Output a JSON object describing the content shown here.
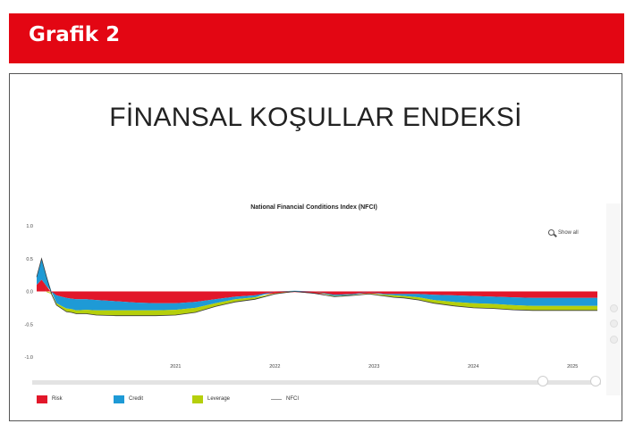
{
  "header": {
    "title": "Grafik 2"
  },
  "figure": {
    "title": "FİNANSAL KOŞULLAR ENDEKSİ"
  },
  "controls": {
    "show_all": "Show all",
    "zoom_icon": "magnifier-icon"
  },
  "colors": {
    "header": "#e30613",
    "risk": "#e2172a",
    "credit": "#1e9ad6",
    "leverage": "#b5cf0b",
    "nfci": "#9a9a9a"
  },
  "chart_data": {
    "type": "area",
    "title": "National Financial Conditions Index (NFCI)",
    "yticks": [
      "1.0",
      "0.5",
      "0.0",
      "-0.5",
      "-1.0"
    ],
    "ylim": [
      -1.0,
      1.0
    ],
    "xlim": [
      2019.6,
      2025.25
    ],
    "xticks": [
      {
        "label": "2021",
        "value": 2021
      },
      {
        "label": "2022",
        "value": 2022
      },
      {
        "label": "2023",
        "value": 2023
      },
      {
        "label": "2024",
        "value": 2024
      },
      {
        "label": "2025",
        "value": 2025
      }
    ],
    "grid": false,
    "legend": "bottom-left",
    "x": [
      2019.6,
      2019.65,
      2019.7,
      2019.75,
      2019.8,
      2019.85,
      2019.9,
      2019.95,
      2020.0,
      2020.1,
      2020.2,
      2020.4,
      2020.6,
      2020.8,
      2021.0,
      2021.2,
      2021.4,
      2021.6,
      2021.8,
      2022.0,
      2022.2,
      2022.4,
      2022.6,
      2022.8,
      2022.95,
      2023.1,
      2023.2,
      2023.3,
      2023.45,
      2023.6,
      2023.8,
      2024.0,
      2024.2,
      2024.4,
      2024.6,
      2024.8,
      2025.0,
      2025.1,
      2025.25
    ],
    "series": [
      {
        "name": "Risk",
        "values": [
          0.1,
          0.18,
          0.08,
          -0.02,
          -0.06,
          -0.08,
          -0.1,
          -0.11,
          -0.12,
          -0.12,
          -0.13,
          -0.15,
          -0.17,
          -0.18,
          -0.18,
          -0.16,
          -0.12,
          -0.08,
          -0.06,
          -0.03,
          -0.01,
          -0.03,
          -0.05,
          -0.04,
          -0.03,
          -0.04,
          -0.04,
          -0.04,
          -0.04,
          -0.05,
          -0.06,
          -0.07,
          -0.08,
          -0.09,
          -0.1,
          -0.1,
          -0.1,
          -0.1,
          -0.1
        ]
      },
      {
        "name": "Credit",
        "values": [
          0.12,
          0.32,
          0.15,
          0.0,
          -0.12,
          -0.14,
          -0.16,
          -0.16,
          -0.17,
          -0.16,
          -0.16,
          -0.14,
          -0.12,
          -0.11,
          -0.1,
          -0.09,
          -0.06,
          -0.04,
          -0.03,
          0.0,
          0.01,
          0.0,
          -0.02,
          -0.01,
          0.0,
          -0.01,
          -0.02,
          -0.03,
          -0.05,
          -0.08,
          -0.1,
          -0.11,
          -0.11,
          -0.12,
          -0.12,
          -0.12,
          -0.12,
          -0.12,
          -0.12
        ]
      },
      {
        "name": "Leverage",
        "values": [
          0.0,
          0.0,
          -0.01,
          -0.02,
          -0.03,
          -0.04,
          -0.05,
          -0.05,
          -0.05,
          -0.06,
          -0.07,
          -0.08,
          -0.08,
          -0.08,
          -0.08,
          -0.07,
          -0.05,
          -0.04,
          -0.03,
          -0.01,
          0.0,
          0.0,
          -0.01,
          -0.01,
          -0.01,
          -0.02,
          -0.03,
          -0.03,
          -0.04,
          -0.05,
          -0.06,
          -0.07,
          -0.07,
          -0.07,
          -0.07,
          -0.07,
          -0.07,
          -0.07,
          -0.07
        ]
      },
      {
        "name": "NFCI",
        "values": [
          0.22,
          0.5,
          0.22,
          -0.04,
          -0.21,
          -0.26,
          -0.31,
          -0.32,
          -0.34,
          -0.34,
          -0.36,
          -0.37,
          -0.37,
          -0.37,
          -0.36,
          -0.32,
          -0.23,
          -0.16,
          -0.12,
          -0.04,
          0.0,
          -0.03,
          -0.08,
          -0.06,
          -0.04,
          -0.07,
          -0.09,
          -0.1,
          -0.13,
          -0.18,
          -0.22,
          -0.25,
          -0.26,
          -0.28,
          -0.29,
          -0.29,
          -0.29,
          -0.29,
          -0.29
        ]
      }
    ]
  }
}
